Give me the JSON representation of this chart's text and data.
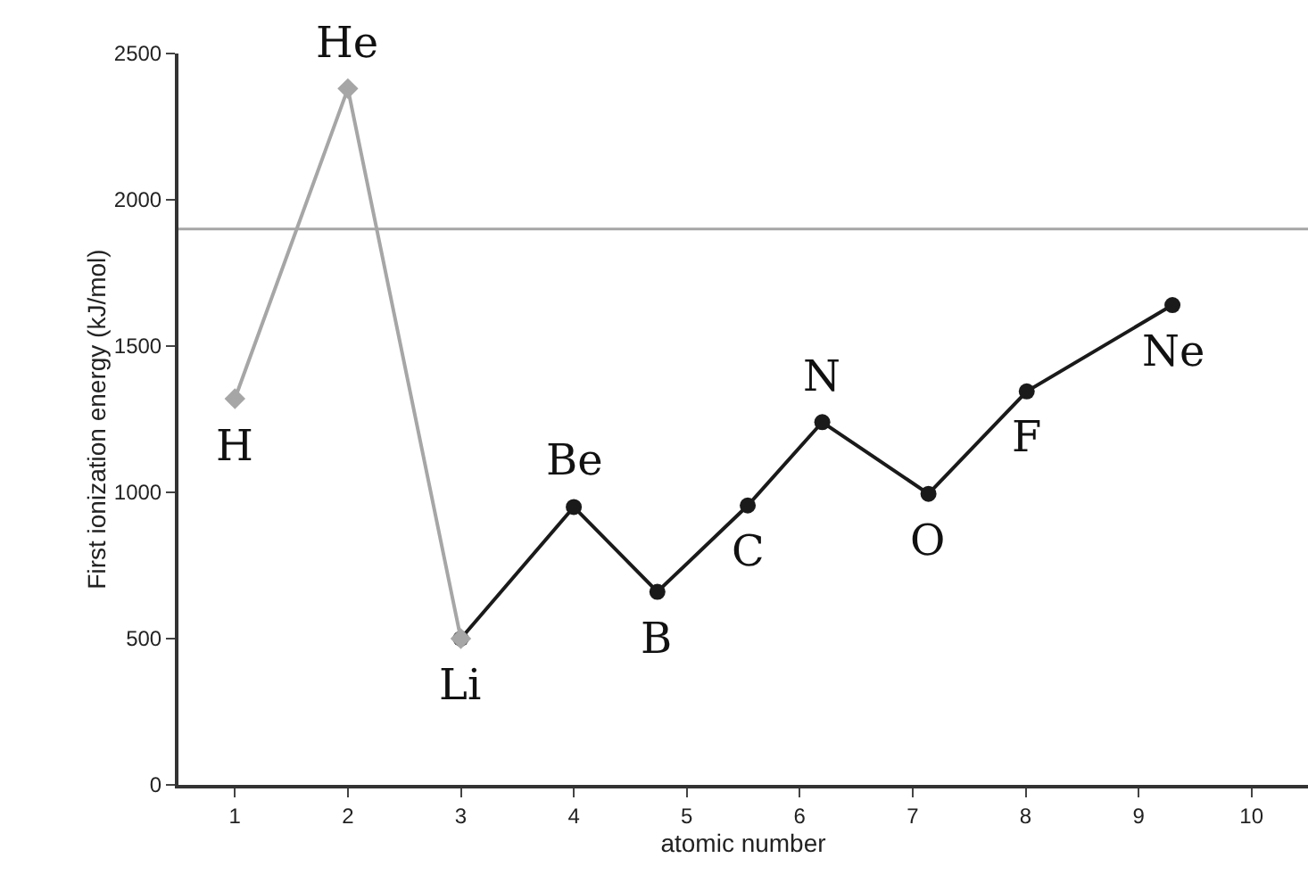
{
  "chart_data": {
    "type": "line",
    "xlabel": "atomic number",
    "ylabel": "First ionization energy (kJ/mol)",
    "xlim": [
      0.5,
      10.5
    ],
    "xticks": [
      1,
      2,
      3,
      4,
      5,
      6,
      7,
      8,
      9,
      10
    ],
    "ylim": [
      0,
      2500
    ],
    "yticks": [
      0,
      500,
      1000,
      1500,
      2000,
      2500
    ],
    "grid": false,
    "series": [
      {
        "color": "#a6a6a6",
        "marker": "diamond",
        "x": [
          1,
          2,
          3
        ],
        "values": [
          1320,
          2380,
          500
        ]
      },
      {
        "color": "#1a1a1a",
        "marker": "circle",
        "x": [
          3,
          4,
          4.74,
          5.54,
          6.2,
          7.14,
          8.01,
          9.3
        ],
        "values": [
          500,
          950,
          660,
          955,
          1240,
          995,
          1345,
          1640
        ]
      }
    ],
    "ref_lines": [
      {
        "axis": "y",
        "value": 1900,
        "color": "#a6a6a6"
      }
    ],
    "annotations": [
      {
        "text": "H",
        "x": 1,
        "y": 1320
      },
      {
        "text": "He",
        "x": 2,
        "y": 2380
      },
      {
        "text": "Li",
        "x": 3,
        "y": 500
      },
      {
        "text": "Be",
        "x": 4,
        "y": 950
      },
      {
        "text": "B",
        "x": 4.74,
        "y": 660
      },
      {
        "text": "C",
        "x": 5.54,
        "y": 955
      },
      {
        "text": "N",
        "x": 6.2,
        "y": 1240
      },
      {
        "text": "O",
        "x": 7.14,
        "y": 995
      },
      {
        "text": "F",
        "x": 8.01,
        "y": 1345
      },
      {
        "text": "Ne",
        "x": 9.3,
        "y": 1640
      }
    ]
  }
}
